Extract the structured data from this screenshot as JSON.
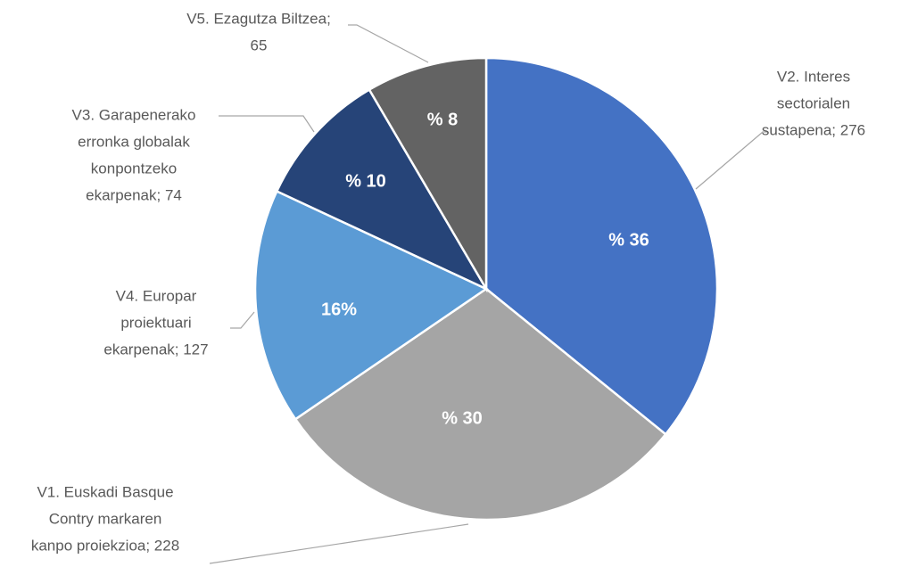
{
  "chart_data": {
    "type": "pie",
    "values": [
      276,
      228,
      127,
      74,
      65
    ],
    "value_labels": [
      [
        "V2. Interes",
        "sectorialen",
        "sustapena; 276"
      ],
      [
        "V1. Euskadi Basque",
        "Contry markaren",
        "kanpo proiekzioa; 228"
      ],
      [
        "V4. Europar",
        "proiektuari",
        "ekarpenak; 127"
      ],
      [
        "V3. Garapenerako",
        "erronka globalak",
        "konpontzeko",
        "ekarpenak; 74"
      ],
      [
        "V5. Ezagutza Biltzea;",
        "65"
      ]
    ],
    "percent_labels": [
      "% 36",
      "% 30",
      "16%",
      "% 10",
      "% 8"
    ],
    "colors": [
      "#4472c4",
      "#a5a5a5",
      "#5b9bd5",
      "#264478",
      "#636363"
    ]
  }
}
